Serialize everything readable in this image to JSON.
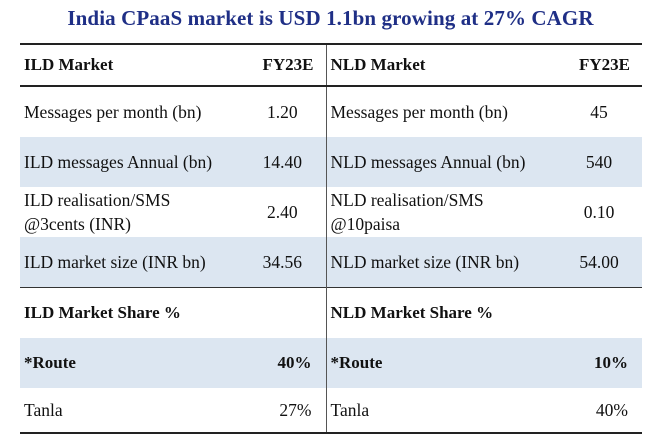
{
  "title": "India CPaaS market is USD 1.1bn growing at 27% CAGR",
  "table": {
    "header": [
      "ILD Market",
      "FY23E",
      "NLD Market",
      "FY23E"
    ],
    "rows": [
      [
        "Messages per month (bn)",
        "1.20",
        "Messages per month (bn)",
        "45"
      ],
      [
        "ILD messages Annual (bn)",
        "14.40",
        "NLD messages Annual (bn)",
        "540"
      ],
      [
        "ILD realisation/SMS @3cents (INR)",
        "2.40",
        "NLD realisation/SMS @10paisa",
        "0.10"
      ],
      [
        "ILD market size (INR bn)",
        "34.56",
        "NLD market size (INR bn)",
        "54.00"
      ]
    ],
    "share_header": [
      "ILD Market Share %",
      "",
      "NLD Market Share %",
      ""
    ],
    "share_rows": [
      [
        "*Route",
        "40%",
        "*Route",
        "10%"
      ],
      [
        "Tanla",
        "27%",
        "Tanla",
        "40%"
      ]
    ]
  }
}
